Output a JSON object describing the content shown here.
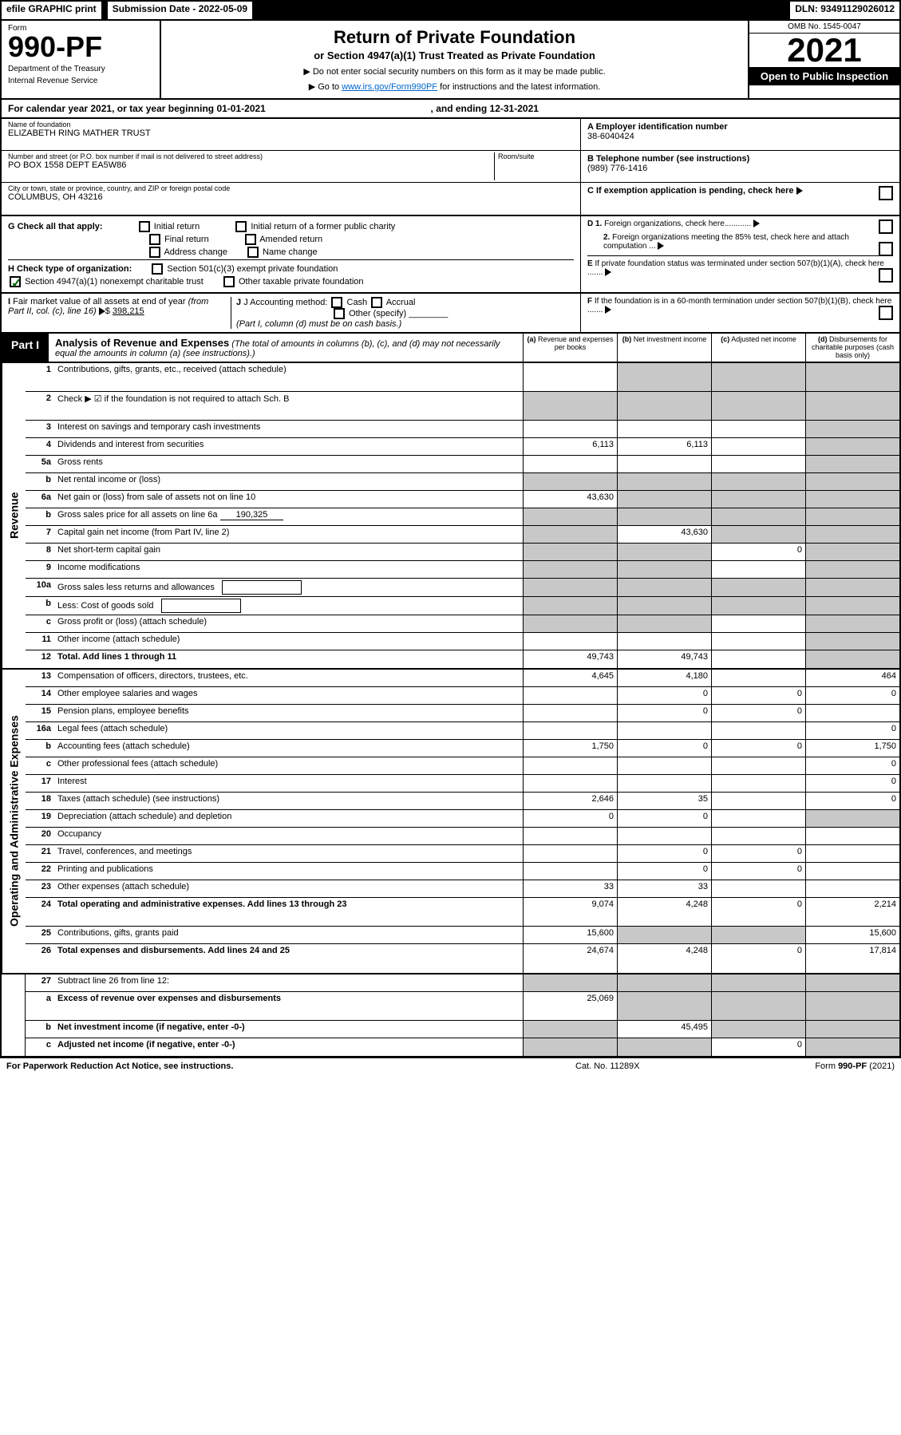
{
  "topbar": {
    "efile": "efile GRAPHIC print",
    "submission_date": "Submission Date - 2022-05-09",
    "dln": "DLN: 93491129026012"
  },
  "header": {
    "form_label": "Form",
    "form_number": "990-PF",
    "dept1": "Department of the Treasury",
    "dept2": "Internal Revenue Service",
    "title": "Return of Private Foundation",
    "subtitle": "or Section 4947(a)(1) Trust Treated as Private Foundation",
    "instr1": "▶ Do not enter social security numbers on this form as it may be made public.",
    "instr2_pre": "▶ Go to ",
    "instr2_link": "www.irs.gov/Form990PF",
    "instr2_post": " for instructions and the latest information.",
    "omb": "OMB No. 1545-0047",
    "year": "2021",
    "open_public": "Open to Public Inspection"
  },
  "cal_year": {
    "text_pre": "For calendar year 2021, or tax year beginning ",
    "begin": "01-01-2021",
    "text_mid": ", and ending ",
    "end": "12-31-2021"
  },
  "entity": {
    "name_label": "Name of foundation",
    "name": "ELIZABETH RING MATHER TRUST",
    "addr_label": "Number and street (or P.O. box number if mail is not delivered to street address)",
    "addr": "PO BOX 1558 DEPT EA5W86",
    "room_label": "Room/suite",
    "room": "",
    "city_label": "City or town, state or province, country, and ZIP or foreign postal code",
    "city": "COLUMBUS, OH  43216",
    "ein_label": "A Employer identification number",
    "ein": "38-6040424",
    "phone_label": "B Telephone number (see instructions)",
    "phone": "(989) 776-1416",
    "c_label": "C If exemption application is pending, check here"
  },
  "checks": {
    "g_label": "G Check all that apply:",
    "g_opts": [
      "Initial return",
      "Initial return of a former public charity",
      "Final return",
      "Amended return",
      "Address change",
      "Name change"
    ],
    "h_label": "H Check type of organization:",
    "h_opt1": "Section 501(c)(3) exempt private foundation",
    "h_opt2": "Section 4947(a)(1) nonexempt charitable trust",
    "h_opt3": "Other taxable private foundation",
    "d_label": "D 1. Foreign organizations, check here............",
    "d2_label": "2. Foreign organizations meeting the 85% test, check here and attach computation ...",
    "e_label": "E If private foundation status was terminated under section 507(b)(1)(A), check here .......",
    "i_label": "I Fair market value of all assets at end of year (from Part II, col. (c), line 16)",
    "i_value": "398,215",
    "j_label": "J Accounting method:",
    "j_opts": [
      "Cash",
      "Accrual",
      "Other (specify)"
    ],
    "j_note": "(Part I, column (d) must be on cash basis.)",
    "f_label": "F If the foundation is in a 60-month termination under section 507(b)(1)(B), check here ......."
  },
  "part1": {
    "label": "Part I",
    "title": "Analysis of Revenue and Expenses",
    "subtitle": "(The total of amounts in columns (b), (c), and (d) may not necessarily equal the amounts in column (a) (see instructions).)",
    "col_a": "(a) Revenue and expenses per books",
    "col_b": "(b) Net investment income",
    "col_c": "(c) Adjusted net income",
    "col_d": "(d) Disbursements for charitable purposes (cash basis only)"
  },
  "side_labels": {
    "revenue": "Revenue",
    "expenses": "Operating and Administrative Expenses"
  },
  "rows": [
    {
      "num": "1",
      "desc": "Contributions, gifts, grants, etc., received (attach schedule)",
      "a": "",
      "b": "shade",
      "c": "shade",
      "d": "shade",
      "tall": true
    },
    {
      "num": "2",
      "desc": "Check ▶ ☑ if the foundation is not required to attach Sch. B",
      "a": "shade",
      "b": "shade",
      "c": "shade",
      "d": "shade",
      "tall": true
    },
    {
      "num": "3",
      "desc": "Interest on savings and temporary cash investments",
      "a": "",
      "b": "",
      "c": "",
      "d": "shade"
    },
    {
      "num": "4",
      "desc": "Dividends and interest from securities",
      "a": "6,113",
      "b": "6,113",
      "c": "",
      "d": "shade"
    },
    {
      "num": "5a",
      "desc": "Gross rents",
      "a": "",
      "b": "",
      "c": "",
      "d": "shade"
    },
    {
      "num": "b",
      "desc": "Net rental income or (loss)",
      "a": "shade",
      "b": "shade",
      "c": "shade",
      "d": "shade"
    },
    {
      "num": "6a",
      "desc": "Net gain or (loss) from sale of assets not on line 10",
      "a": "43,630",
      "b": "shade",
      "c": "shade",
      "d": "shade"
    },
    {
      "num": "b",
      "desc": "Gross sales price for all assets on line 6a",
      "inline": "190,325",
      "a": "shade",
      "b": "shade",
      "c": "shade",
      "d": "shade"
    },
    {
      "num": "7",
      "desc": "Capital gain net income (from Part IV, line 2)",
      "a": "shade",
      "b": "43,630",
      "c": "shade",
      "d": "shade"
    },
    {
      "num": "8",
      "desc": "Net short-term capital gain",
      "a": "shade",
      "b": "shade",
      "c": "0",
      "d": "shade"
    },
    {
      "num": "9",
      "desc": "Income modifications",
      "a": "shade",
      "b": "shade",
      "c": "",
      "d": "shade"
    },
    {
      "num": "10a",
      "desc": "Gross sales less returns and allowances",
      "box": true,
      "a": "shade",
      "b": "shade",
      "c": "shade",
      "d": "shade"
    },
    {
      "num": "b",
      "desc": "Less: Cost of goods sold",
      "box": true,
      "a": "shade",
      "b": "shade",
      "c": "shade",
      "d": "shade"
    },
    {
      "num": "c",
      "desc": "Gross profit or (loss) (attach schedule)",
      "a": "shade",
      "b": "shade",
      "c": "",
      "d": "shade"
    },
    {
      "num": "11",
      "desc": "Other income (attach schedule)",
      "a": "",
      "b": "",
      "c": "",
      "d": "shade"
    },
    {
      "num": "12",
      "desc": "Total. Add lines 1 through 11",
      "bold": true,
      "a": "49,743",
      "b": "49,743",
      "c": "",
      "d": "shade"
    }
  ],
  "exp_rows": [
    {
      "num": "13",
      "desc": "Compensation of officers, directors, trustees, etc.",
      "a": "4,645",
      "b": "4,180",
      "c": "",
      "d": "464"
    },
    {
      "num": "14",
      "desc": "Other employee salaries and wages",
      "a": "",
      "b": "0",
      "c": "0",
      "d": "0"
    },
    {
      "num": "15",
      "desc": "Pension plans, employee benefits",
      "a": "",
      "b": "0",
      "c": "0",
      "d": ""
    },
    {
      "num": "16a",
      "desc": "Legal fees (attach schedule)",
      "a": "",
      "b": "",
      "c": "",
      "d": "0"
    },
    {
      "num": "b",
      "desc": "Accounting fees (attach schedule)",
      "a": "1,750",
      "b": "0",
      "c": "0",
      "d": "1,750"
    },
    {
      "num": "c",
      "desc": "Other professional fees (attach schedule)",
      "a": "",
      "b": "",
      "c": "",
      "d": "0"
    },
    {
      "num": "17",
      "desc": "Interest",
      "a": "",
      "b": "",
      "c": "",
      "d": "0"
    },
    {
      "num": "18",
      "desc": "Taxes (attach schedule) (see instructions)",
      "a": "2,646",
      "b": "35",
      "c": "",
      "d": "0"
    },
    {
      "num": "19",
      "desc": "Depreciation (attach schedule) and depletion",
      "a": "0",
      "b": "0",
      "c": "",
      "d": "shade"
    },
    {
      "num": "20",
      "desc": "Occupancy",
      "a": "",
      "b": "",
      "c": "",
      "d": ""
    },
    {
      "num": "21",
      "desc": "Travel, conferences, and meetings",
      "a": "",
      "b": "0",
      "c": "0",
      "d": ""
    },
    {
      "num": "22",
      "desc": "Printing and publications",
      "a": "",
      "b": "0",
      "c": "0",
      "d": ""
    },
    {
      "num": "23",
      "desc": "Other expenses (attach schedule)",
      "a": "33",
      "b": "33",
      "c": "",
      "d": ""
    },
    {
      "num": "24",
      "desc": "Total operating and administrative expenses. Add lines 13 through 23",
      "bold": true,
      "a": "9,074",
      "b": "4,248",
      "c": "0",
      "d": "2,214",
      "tall": true
    },
    {
      "num": "25",
      "desc": "Contributions, gifts, grants paid",
      "a": "15,600",
      "b": "shade",
      "c": "shade",
      "d": "15,600"
    },
    {
      "num": "26",
      "desc": "Total expenses and disbursements. Add lines 24 and 25",
      "bold": true,
      "a": "24,674",
      "b": "4,248",
      "c": "0",
      "d": "17,814",
      "tall": true
    }
  ],
  "final_rows": [
    {
      "num": "27",
      "desc": "Subtract line 26 from line 12:",
      "a": "shade",
      "b": "shade",
      "c": "shade",
      "d": "shade"
    },
    {
      "num": "a",
      "desc": "Excess of revenue over expenses and disbursements",
      "bold": true,
      "a": "25,069",
      "b": "shade",
      "c": "shade",
      "d": "shade",
      "tall": true
    },
    {
      "num": "b",
      "desc": "Net investment income (if negative, enter -0-)",
      "bold": true,
      "a": "shade",
      "b": "45,495",
      "c": "shade",
      "d": "shade"
    },
    {
      "num": "c",
      "desc": "Adjusted net income (if negative, enter -0-)",
      "bold": true,
      "a": "shade",
      "b": "shade",
      "c": "0",
      "d": "shade"
    }
  ],
  "footer": {
    "left": "For Paperwork Reduction Act Notice, see instructions.",
    "mid": "Cat. No. 11289X",
    "right": "Form 990-PF (2021)"
  }
}
